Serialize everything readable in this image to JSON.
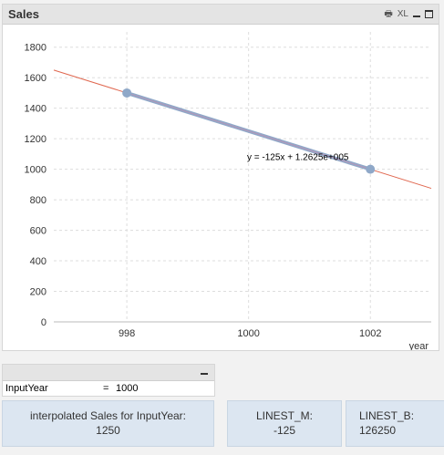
{
  "chart_panel": {
    "title": "Sales",
    "xl_label": "XL"
  },
  "chart_data": {
    "type": "scatter",
    "title": "",
    "xlabel": "year",
    "ylabel": "",
    "xlim": [
      996.8,
      1003.0
    ],
    "ylim": [
      0,
      1900
    ],
    "x_ticks": [
      998,
      1000,
      1002
    ],
    "y_ticks": [
      0,
      200,
      400,
      600,
      800,
      1000,
      1200,
      1400,
      1600,
      1800
    ],
    "grid": true,
    "series": [
      {
        "x": [
          998,
          1002
        ],
        "y": [
          1500,
          1000
        ],
        "color": "#8fa8c8"
      }
    ],
    "trendline": {
      "slope": -125,
      "intercept": 126250,
      "color": "#e0674f"
    },
    "equation_label": "y = -125x + 1.2625e+005"
  },
  "input_box": {
    "label": "InputYear",
    "equals": "=",
    "value": "1000"
  },
  "textboxes": [
    {
      "line1": "interpolated Sales for InputYear:",
      "line2": "1250"
    },
    {
      "line1": "LINEST_M:",
      "line2": "-125"
    },
    {
      "line1": "LINEST_B:",
      "line2": "126250"
    }
  ]
}
